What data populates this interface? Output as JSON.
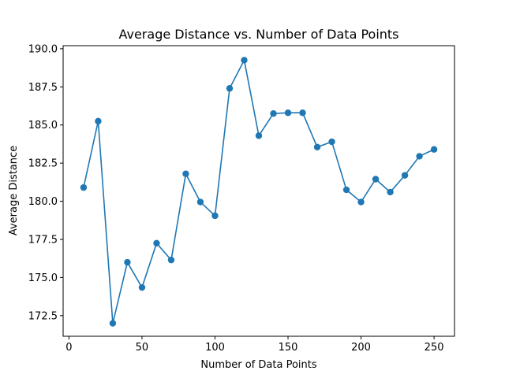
{
  "chart_data": {
    "type": "line",
    "title": "Average Distance vs. Number of Data Points",
    "xlabel": "Number of Data Points",
    "ylabel": "Average Distance",
    "xlim": [
      -4,
      264
    ],
    "ylim": [
      171.15,
      190.2
    ],
    "xticks": [
      0,
      50,
      100,
      150,
      200,
      250
    ],
    "yticks": [
      172.5,
      175.0,
      177.5,
      180.0,
      182.5,
      185.0,
      187.5,
      190.0
    ],
    "grid": false,
    "legend": "none",
    "color": "#1f77b4",
    "marker": "circle",
    "series": [
      {
        "x": [
          10,
          20,
          30,
          40,
          50,
          60,
          70,
          80,
          90,
          100,
          110,
          120,
          130,
          140,
          150,
          160,
          170,
          180,
          190,
          200,
          210,
          220,
          230,
          240,
          250
        ],
        "y": [
          180.9,
          185.25,
          172.0,
          176.0,
          174.35,
          177.25,
          176.15,
          181.8,
          179.95,
          179.05,
          187.4,
          189.25,
          184.3,
          185.75,
          185.8,
          185.8,
          183.55,
          183.9,
          180.75,
          179.95,
          181.45,
          180.6,
          181.7,
          182.95,
          183.4
        ]
      }
    ]
  }
}
